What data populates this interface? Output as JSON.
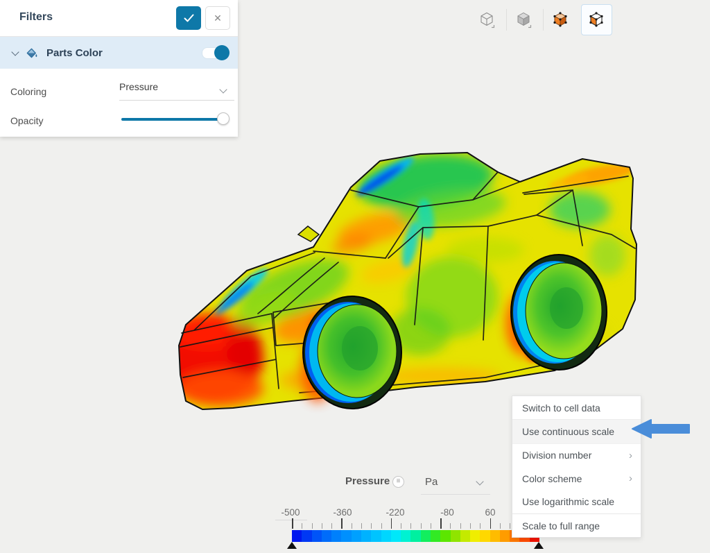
{
  "colors": {
    "accent": "#0e78a8",
    "background": "#f0f0ee",
    "panel_section_bg": "#dfecf7",
    "menu_highlight": "#f4f4f4",
    "annotation_arrow": "#4a8dd9"
  },
  "filters_panel": {
    "title": "Filters",
    "apply_button": {
      "icon": "check-icon"
    },
    "close_button": {
      "icon": "close-icon",
      "glyph": "✕"
    },
    "section": {
      "icon": "paint-bucket-icon",
      "label": "Parts Color",
      "toggle_on": true
    },
    "coloring": {
      "label": "Coloring",
      "value": "Pressure"
    },
    "opacity": {
      "label": "Opacity",
      "value_percent": 100
    }
  },
  "view_toolbar": {
    "buttons": [
      {
        "icon": "wireframe-cube-icon",
        "selected": false
      },
      {
        "icon": "shaded-cube-icon",
        "selected": false
      },
      {
        "icon": "shaded-cube-vertices-icon",
        "selected": false
      },
      {
        "icon": "wireframe-cube-vertices-icon",
        "selected": true
      }
    ]
  },
  "legend": {
    "title": "Pressure",
    "menu_icon": "legend-menu-icon",
    "menu_glyph": "≡",
    "unit": "Pa",
    "tick_labels": [
      "-500",
      "-360",
      "-220",
      "-80",
      "60"
    ],
    "colorbar_colors": [
      "#0018ee",
      "#0038f4",
      "#0054f8",
      "#006cfa",
      "#0080fc",
      "#0090fe",
      "#00a0ff",
      "#00b2ff",
      "#00c4ff",
      "#00d6ff",
      "#00e8fa",
      "#00f2d2",
      "#00f0a0",
      "#12ee5e",
      "#32ea24",
      "#5ce600",
      "#90e400",
      "#c4ea00",
      "#f0ee00",
      "#ffd800",
      "#ffbc00",
      "#ff9c00",
      "#ff7800",
      "#ff4c00",
      "#f21400"
    ],
    "range_handles": [
      "min",
      "max"
    ]
  },
  "context_menu": {
    "items": [
      {
        "label": "Switch to cell data"
      },
      {
        "label": "Use continuous scale",
        "highlighted": true
      },
      {
        "label": "Division number",
        "has_submenu": true
      },
      {
        "label": "Color scheme",
        "has_submenu": true
      },
      {
        "label": "Use logarithmic scale"
      },
      {
        "label": "Scale to full range"
      }
    ]
  },
  "annotation_arrow": {
    "points_at": "Use continuous scale",
    "color": "#4a8dd9"
  }
}
